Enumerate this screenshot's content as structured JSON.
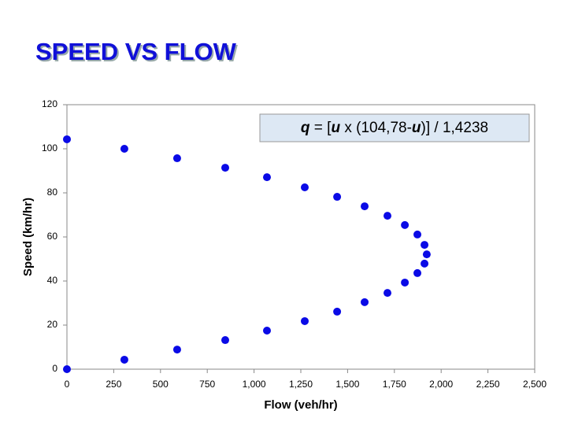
{
  "chart_data": {
    "type": "scatter",
    "title": "SPEED VS FLOW",
    "annotation": [
      "q",
      " = [",
      "u",
      " x (104,78-",
      "u",
      ")] / 1,4238"
    ],
    "x_label": "Flow (veh/hr)",
    "y_label": "Speed (km/hr)",
    "x": [
      0,
      307,
      589,
      846,
      1069,
      1271,
      1444,
      1591,
      1713,
      1806,
      1873,
      1911,
      1923,
      1911,
      1873,
      1806,
      1713,
      1591,
      1444,
      1271,
      1069,
      846,
      589,
      307,
      0
    ],
    "values": [
      104.3,
      100,
      95.7,
      91.4,
      87.1,
      82.5,
      78.2,
      73.9,
      69.6,
      65.4,
      61.1,
      56.4,
      52.1,
      47.9,
      43.6,
      39.3,
      34.6,
      30.4,
      26.1,
      21.8,
      17.5,
      13.2,
      8.9,
      4.3,
      0
    ],
    "color": "#0a0ae6",
    "xlim": [
      0,
      2500
    ],
    "xticks": [
      0,
      250,
      500,
      750,
      {
        "value": 1000,
        "label": "1,000"
      },
      {
        "value": 1250,
        "label": "1,250"
      },
      {
        "value": 1500,
        "label": "1,500"
      },
      {
        "value": 1750,
        "label": "1,750"
      },
      {
        "value": 2000,
        "label": "2,000"
      },
      {
        "value": 2250,
        "label": "2,250"
      },
      {
        "value": 2500,
        "label": "2,500"
      }
    ],
    "ylim": [
      0,
      120
    ],
    "yticks": [
      0,
      20,
      40,
      60,
      80,
      100,
      120
    ],
    "grid": false
  }
}
